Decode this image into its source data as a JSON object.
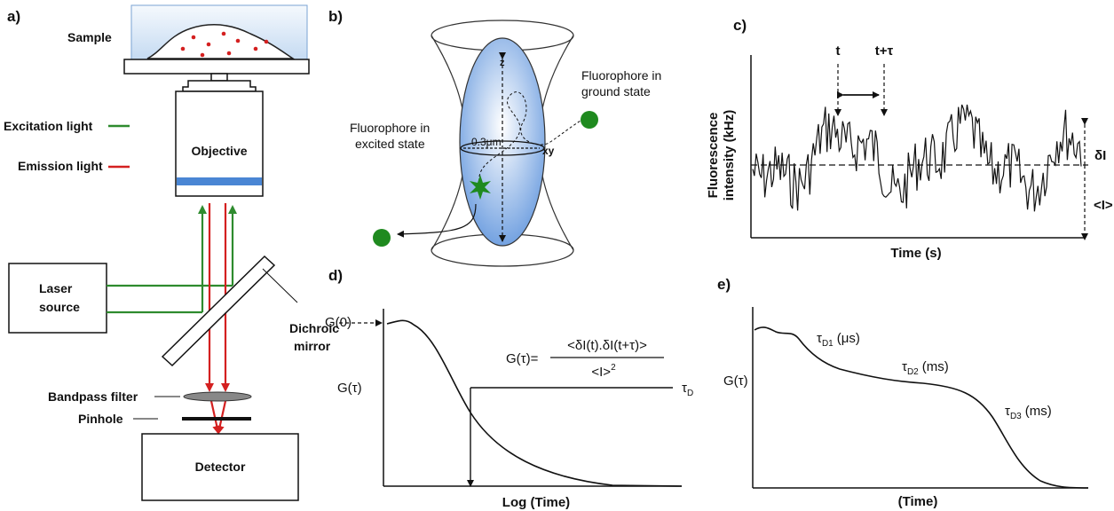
{
  "panel_labels": {
    "a": "a)",
    "b": "b)",
    "c": "c)",
    "d": "d)",
    "e": "e)"
  },
  "colors": {
    "excitation": "#2e8b2e",
    "emission": "#d42020",
    "fluorophore": "#1f8a1f",
    "filter_blue": "#4a86d4",
    "sample_bg": "#dbe9f7"
  },
  "panel_a": {
    "sample": "Sample",
    "excitation_light": "Excitation light",
    "emission_light": "Emission light",
    "objective": "Objective",
    "laser_line1": "Laser",
    "laser_line2": "source",
    "dichroic_line1": "Dichroic",
    "dichroic_line2": "mirror",
    "bandpass_filter": "Bandpass filter",
    "pinhole": "Pinhole",
    "detector": "Detector"
  },
  "panel_b": {
    "excited_line1": "Fluorophore in",
    "excited_line2": "excited state",
    "ground_line1": "Fluorophore in",
    "ground_line2": "ground state",
    "width_label": "0.3μm",
    "z_label": "z",
    "xy_label": "xy"
  },
  "panel_c": {
    "ylabel_line1": "Fluorescence",
    "ylabel_line2": "intensity (kHz)",
    "xlabel": "Time (s)",
    "t_label": "t",
    "t_tau_label": "t+τ",
    "delta_i": "δI",
    "mean_i": "<I>"
  },
  "panel_d": {
    "g0": "G(0)",
    "g_tau": "G(τ)",
    "formula_lhs": "G(τ)=",
    "formula_num": "<δI(t).δI(t+τ)>",
    "formula_den": "<I>",
    "formula_den_exp": "2",
    "tau_d": "τ",
    "tau_d_sub": "D",
    "xlabel": "Log (Time)"
  },
  "panel_e": {
    "g_tau": "G(τ)",
    "t1": "τ",
    "t1_sub": "D1",
    "t1_unit": "(μs)",
    "t2": "τ",
    "t2_sub": "D2",
    "t2_unit": "(ms)",
    "t3": "τ",
    "t3_sub": "D3",
    "t3_unit": "(ms)",
    "xlabel": "(Time)"
  }
}
